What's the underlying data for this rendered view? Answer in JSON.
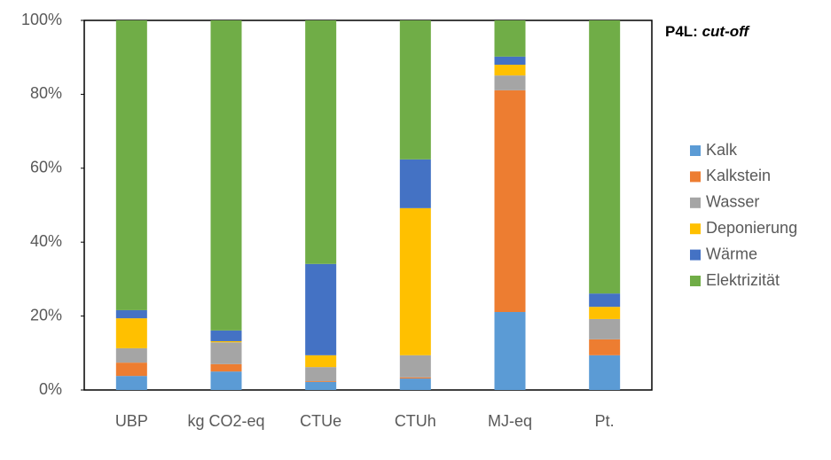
{
  "chart_data": {
    "type": "stacked_bar",
    "title": [
      "P4L:",
      "cut-off"
    ],
    "categories": [
      "UBP",
      "kg CO2-eq",
      "CTUe",
      "CTUh",
      "MJ-eq",
      "Pt."
    ],
    "series": [
      {
        "name": "Kalk",
        "color": "#5b9bd5",
        "values": [
          3.8,
          5.0,
          2.2,
          3.1,
          21.1,
          9.4
        ]
      },
      {
        "name": "Kalkstein",
        "color": "#ed7d31",
        "values": [
          3.6,
          2.0,
          0.2,
          0.3,
          60.0,
          4.3
        ]
      },
      {
        "name": "Wasser",
        "color": "#a5a5a5",
        "values": [
          3.9,
          5.9,
          3.8,
          6.0,
          4.0,
          5.5
        ]
      },
      {
        "name": "Deponierung",
        "color": "#ffc000",
        "values": [
          8.1,
          0.3,
          3.2,
          39.8,
          2.9,
          3.3
        ]
      },
      {
        "name": "Wärme",
        "color": "#4472c4",
        "values": [
          2.2,
          2.9,
          24.7,
          13.2,
          2.2,
          3.6
        ]
      },
      {
        "name": "Elektrizität",
        "color": "#70ad47",
        "values": [
          78.4,
          83.9,
          65.9,
          37.6,
          9.8,
          73.9
        ]
      }
    ],
    "ylim": [
      0,
      100
    ],
    "yticks": [
      {
        "value": 0,
        "label": "0%"
      },
      {
        "value": 20,
        "label": "20%"
      },
      {
        "value": 40,
        "label": "40%"
      },
      {
        "value": 60,
        "label": "60%"
      },
      {
        "value": 80,
        "label": "80%"
      },
      {
        "value": 100,
        "label": "100%"
      }
    ],
    "legend": "right"
  }
}
